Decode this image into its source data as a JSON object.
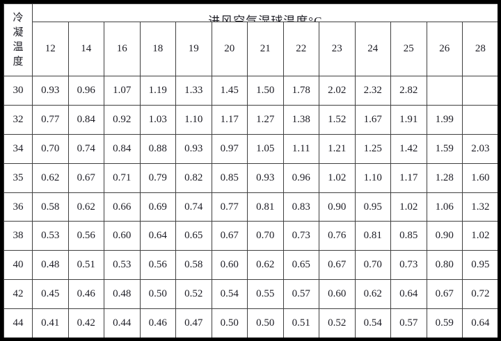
{
  "table": {
    "corner_label": "冷凝温度",
    "title": "进风空气湿球温度°C",
    "columns": [
      "12",
      "14",
      "16",
      "18",
      "19",
      "20",
      "21",
      "22",
      "23",
      "24",
      "25",
      "26",
      "28"
    ],
    "rows": [
      {
        "label": "30",
        "values": [
          "0.93",
          "0.96",
          "1.07",
          "1.19",
          "1.33",
          "1.45",
          "1.50",
          "1.78",
          "2.02",
          "2.32",
          "2.82",
          "",
          ""
        ]
      },
      {
        "label": "32",
        "values": [
          "0.77",
          "0.84",
          "0.92",
          "1.03",
          "1.10",
          "1.17",
          "1.27",
          "1.38",
          "1.52",
          "1.67",
          "1.91",
          "1.99",
          ""
        ]
      },
      {
        "label": "34",
        "values": [
          "0.70",
          "0.74",
          "0.84",
          "0.88",
          "0.93",
          "0.97",
          "1.05",
          "1.11",
          "1.21",
          "1.25",
          "1.42",
          "1.59",
          "2.03"
        ]
      },
      {
        "label": "35",
        "values": [
          "0.62",
          "0.67",
          "0.71",
          "0.79",
          "0.82",
          "0.85",
          "0.93",
          "0.96",
          "1.02",
          "1.10",
          "1.17",
          "1.28",
          "1.60"
        ]
      },
      {
        "label": "36",
        "values": [
          "0.58",
          "0.62",
          "0.66",
          "0.69",
          "0.74",
          "0.77",
          "0.81",
          "0.83",
          "0.90",
          "0.95",
          "1.02",
          "1.06",
          "1.32"
        ]
      },
      {
        "label": "38",
        "values": [
          "0.53",
          "0.56",
          "0.60",
          "0.64",
          "0.65",
          "0.67",
          "0.70",
          "0.73",
          "0.76",
          "0.81",
          "0.85",
          "0.90",
          "1.02"
        ]
      },
      {
        "label": "40",
        "values": [
          "0.48",
          "0.51",
          "0.53",
          "0.56",
          "0.58",
          "0.60",
          "0.62",
          "0.65",
          "0.67",
          "0.70",
          "0.73",
          "0.80",
          "0.95"
        ]
      },
      {
        "label": "42",
        "values": [
          "0.45",
          "0.46",
          "0.48",
          "0.50",
          "0.52",
          "0.54",
          "0.55",
          "0.57",
          "0.60",
          "0.62",
          "0.64",
          "0.67",
          "0.72"
        ]
      },
      {
        "label": "44",
        "values": [
          "0.41",
          "0.42",
          "0.44",
          "0.46",
          "0.47",
          "0.50",
          "0.50",
          "0.51",
          "0.52",
          "0.54",
          "0.57",
          "0.59",
          "0.64"
        ]
      }
    ]
  }
}
